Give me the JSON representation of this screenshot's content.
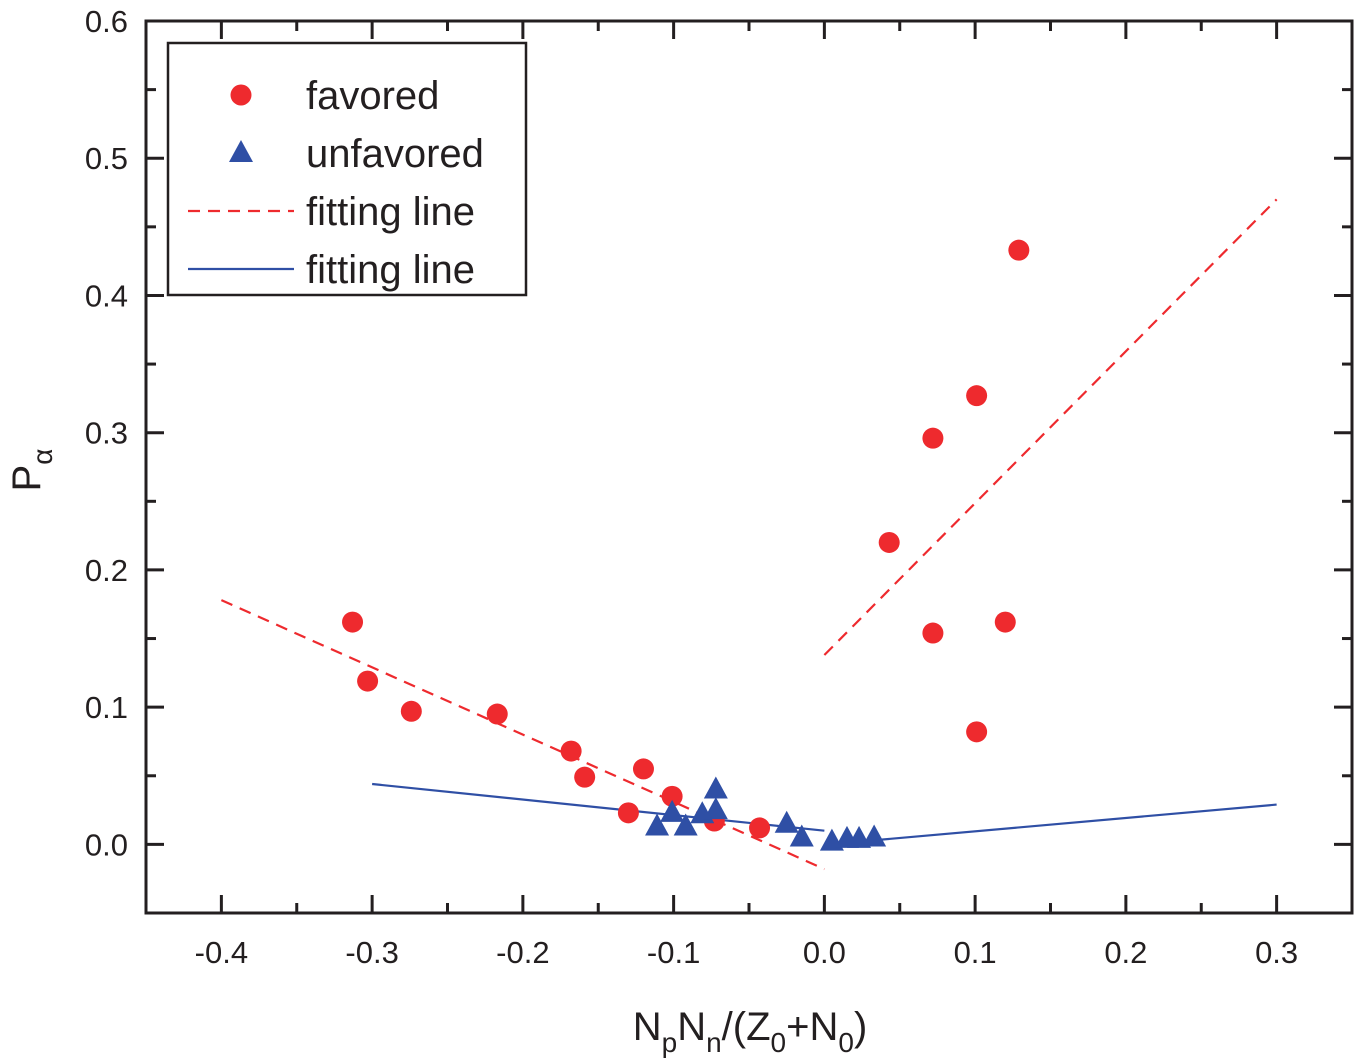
{
  "chart_data": {
    "type": "scatter",
    "title": "",
    "xlabel": {
      "main": "N",
      "parts": [
        [
          "N",
          ""
        ],
        [
          "p",
          "sub"
        ],
        [
          "N",
          ""
        ],
        [
          "n",
          "sub"
        ],
        [
          "/(Z",
          ""
        ],
        [
          "0",
          "sub"
        ],
        [
          "+N",
          ""
        ],
        [
          "0",
          "sub"
        ],
        [
          ")",
          ""
        ]
      ]
    },
    "ylabel": {
      "main": "P",
      "sub": "α"
    },
    "xlim": [
      -0.45,
      0.35
    ],
    "ylim": [
      -0.05,
      0.6
    ],
    "xticks": [
      "-0.4",
      "-0.3",
      "-0.2",
      "-0.1",
      "0.0",
      "0.1",
      "0.2",
      "0.3"
    ],
    "yticks": [
      "0.0",
      "0.1",
      "0.2",
      "0.3",
      "0.4",
      "0.5",
      "0.6"
    ],
    "grid": false,
    "legend_position": "top-left",
    "series": [
      {
        "name": "favored",
        "kind": "points",
        "marker": "circle",
        "color": "#ee2a2e",
        "x": [
          -0.313,
          -0.303,
          -0.274,
          -0.217,
          -0.168,
          -0.159,
          -0.12,
          -0.101,
          -0.13,
          -0.073,
          -0.043,
          0.043,
          0.072,
          0.072,
          0.101,
          0.101,
          0.12,
          0.129
        ],
        "y": [
          0.162,
          0.119,
          0.097,
          0.095,
          0.068,
          0.049,
          0.055,
          0.035,
          0.023,
          0.017,
          0.012,
          0.22,
          0.296,
          0.154,
          0.327,
          0.082,
          0.162,
          0.433
        ]
      },
      {
        "name": "unfavored",
        "kind": "points",
        "marker": "triangle",
        "color": "#2f4fa5",
        "x": [
          -0.111,
          -0.101,
          -0.092,
          -0.081,
          -0.072,
          -0.072,
          -0.025,
          -0.015,
          0.005,
          0.015,
          0.023,
          0.033
        ],
        "y": [
          0.013,
          0.023,
          0.013,
          0.022,
          0.04,
          0.025,
          0.015,
          0.005,
          0.002,
          0.004,
          0.004,
          0.005
        ]
      },
      {
        "name": "fitting line",
        "kind": "line",
        "dash": true,
        "color": "#ee2a2e",
        "segments": [
          [
            [
              -0.4,
              0.178
            ],
            [
              0.0,
              -0.018
            ]
          ],
          [
            [
              0.0,
              0.138
            ],
            [
              0.3,
              0.47
            ]
          ]
        ]
      },
      {
        "name": "fitting line",
        "kind": "line",
        "dash": false,
        "color": "#2f4fa5",
        "segments": [
          [
            [
              -0.3,
              0.044
            ],
            [
              0.0,
              0.01
            ]
          ],
          [
            [
              0.033,
              0.003
            ],
            [
              0.3,
              0.029
            ]
          ]
        ]
      }
    ]
  }
}
